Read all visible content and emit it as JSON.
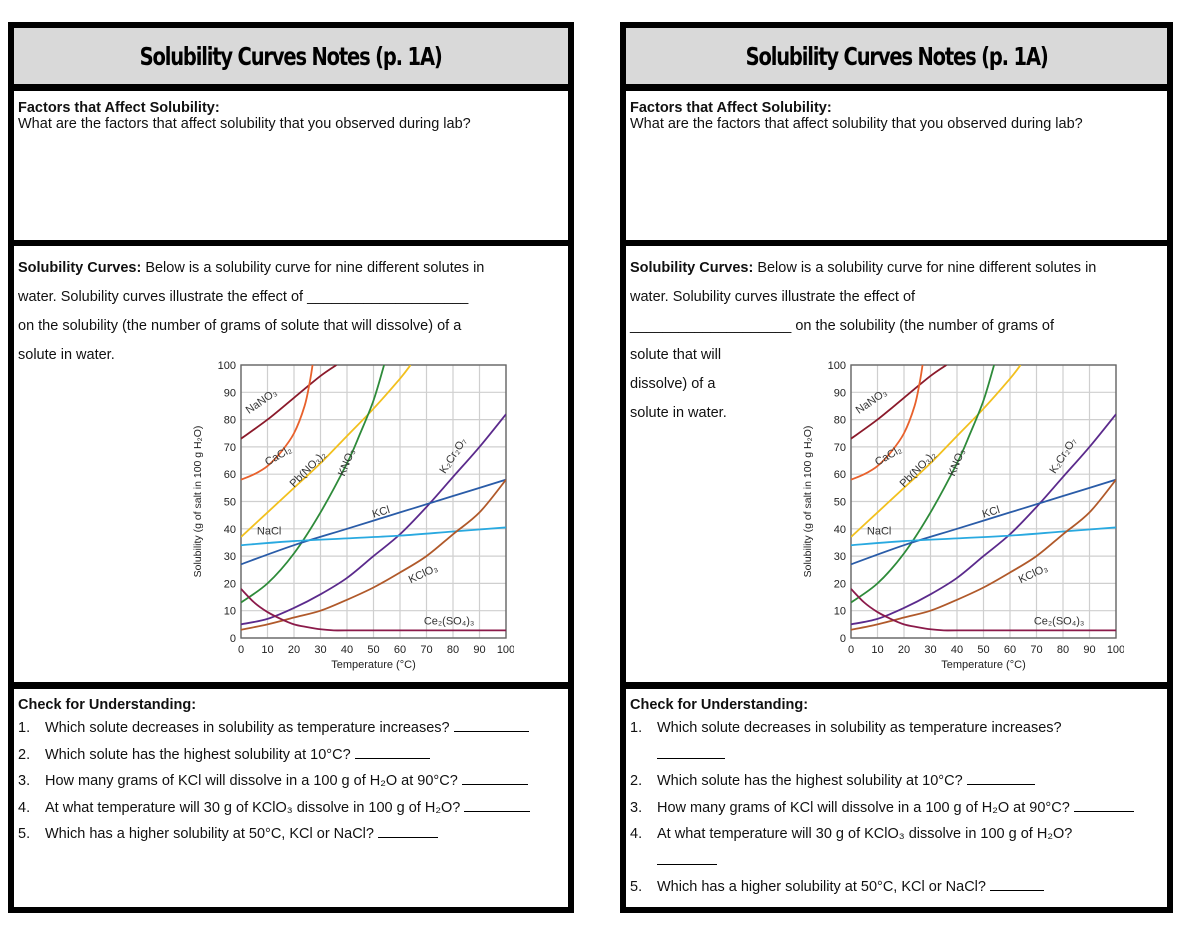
{
  "pages": [
    {
      "title": "Solubility Curves Notes (p. 1A)",
      "factors": {
        "heading": "Factors that Affect Solubility:",
        "prompt": "What are the factors that affect solubility that you observed during lab?"
      },
      "solubility": {
        "heading": "Solubility Curves:",
        "line1": "Below is a solubility curve for nine different solutes in",
        "line2": "water.  Solubility curves illustrate the effect of ____________________",
        "line3": "on the solubility (the number of grams of solute that will dissolve) of a",
        "line4": "solute in water."
      },
      "check": {
        "heading": "Check for Understanding:",
        "questions": [
          {
            "num": "1.",
            "text": "Which solute decreases in solubility as temperature increases?",
            "blank": "_________"
          },
          {
            "num": "2.",
            "text": "Which solute has the highest solubility at 10°C?",
            "blank": "_________"
          },
          {
            "num": "3.",
            "text": "How many grams of KCl will dissolve in a 100 g of H₂O at 90°C?",
            "blank": "________"
          },
          {
            "num": "4.",
            "text": "At what temperature will 30 g of KClO₃ dissolve in 100 g of H₂O?",
            "blank": "________"
          },
          {
            "num": "5.",
            "text": "Which has a higher solubility at 50°C, KCl or NaCl?",
            "blank": "_______"
          }
        ]
      }
    },
    {
      "title": "Solubility Curves Notes (p. 1A)",
      "factors": {
        "heading": "Factors that Affect Solubility:",
        "prompt": "What are the factors that affect solubility that you observed during lab?"
      },
      "solubility": {
        "heading": "Solubility Curves:",
        "line1": "Below is a solubility curve for nine different solutes in",
        "line2": "water.  Solubility curves illustrate the effect of",
        "line3": "____________________ on the solubility (the number of grams of",
        "line4": "solute that will",
        "line5": "dissolve) of a",
        "line6": "solute in water."
      },
      "check": {
        "heading": "Check for Understanding:",
        "questions": [
          {
            "num": "1.",
            "text": "Which solute decreases in solubility as temperature increases?",
            "blank": "_________"
          },
          {
            "num": "2.",
            "text": "Which solute has the highest solubility at 10°C?",
            "blank": "_________"
          },
          {
            "num": "3.",
            "text": "How many grams of KCl will dissolve in a 100 g of H₂O at 90°C?",
            "blank": "________"
          },
          {
            "num": "4.",
            "text": "At what temperature will 30 g of KClO₃ dissolve in 100 g of H₂O?",
            "blank": "________"
          },
          {
            "num": "5.",
            "text": "Which has a higher solubility at 50°C, KCl or NaCl?",
            "blank": "_______"
          }
        ]
      }
    }
  ],
  "chart_data": {
    "type": "line",
    "title": "",
    "xlabel": "Temperature (°C)",
    "ylabel": "Solubility (g of salt in 100 g H₂O)",
    "xlim": [
      0,
      100
    ],
    "ylim": [
      0,
      100
    ],
    "x_ticks": [
      0,
      10,
      20,
      30,
      40,
      50,
      60,
      70,
      80,
      90,
      100
    ],
    "y_ticks": [
      0,
      10,
      20,
      30,
      40,
      50,
      60,
      70,
      80,
      90,
      100
    ],
    "grid": true,
    "legend": "inline labels on curves",
    "series": [
      {
        "name": "NaNO₃",
        "color": "#8b1a2b",
        "x": [
          0,
          10,
          20,
          30,
          36
        ],
        "y": [
          73,
          80,
          88,
          96,
          100
        ]
      },
      {
        "name": "CaCl₂",
        "color": "#e8612c",
        "x": [
          0,
          5,
          10,
          15,
          20,
          24,
          26,
          27
        ],
        "y": [
          58,
          60,
          63,
          68,
          75,
          85,
          94,
          100
        ]
      },
      {
        "name": "Pb(NO₃)₂",
        "color": "#f2c01e",
        "x": [
          0,
          10,
          20,
          30,
          40,
          50,
          60,
          64
        ],
        "y": [
          37,
          46,
          55,
          64,
          74,
          84,
          95,
          100
        ]
      },
      {
        "name": "KNO₃",
        "color": "#2e8b3a",
        "x": [
          0,
          10,
          20,
          30,
          40,
          45,
          50,
          54
        ],
        "y": [
          13,
          20,
          31,
          46,
          64,
          75,
          87,
          100
        ]
      },
      {
        "name": "K₂Cr₂O₇",
        "color": "#5b2a8c",
        "x": [
          0,
          10,
          20,
          30,
          40,
          50,
          60,
          70,
          80,
          90,
          100
        ],
        "y": [
          5,
          7,
          11,
          16,
          22,
          30,
          38,
          48,
          59,
          70,
          82
        ]
      },
      {
        "name": "KCl",
        "color": "#2a5ca8",
        "x": [
          0,
          20,
          40,
          60,
          80,
          100
        ],
        "y": [
          27,
          34,
          40,
          46,
          52,
          58
        ]
      },
      {
        "name": "NaCl",
        "color": "#29a9e0",
        "x": [
          0,
          20,
          40,
          60,
          80,
          100
        ],
        "y": [
          34,
          35.5,
          36.5,
          37.5,
          39,
          40.5
        ]
      },
      {
        "name": "KClO₃",
        "color": "#b0592a",
        "x": [
          0,
          10,
          20,
          30,
          40,
          50,
          60,
          70,
          80,
          90,
          100
        ],
        "y": [
          3,
          5,
          7.5,
          10,
          14,
          18.5,
          24,
          30,
          38,
          46,
          58
        ]
      },
      {
        "name": "Ce₂(SO₄)₃",
        "color": "#8b1a4a",
        "x": [
          0,
          5,
          10,
          15,
          20,
          25,
          30,
          35,
          40,
          60,
          80,
          100
        ],
        "y": [
          18,
          13,
          9.5,
          7,
          5,
          4,
          3.2,
          2.8,
          2.8,
          2.8,
          2.8,
          2.8
        ]
      }
    ],
    "labels": [
      {
        "text": "NaNO₃",
        "x": 3,
        "y": 82,
        "rot": -35
      },
      {
        "text": "CaCl₂",
        "x": 10,
        "y": 63,
        "rot": -30
      },
      {
        "text": "Pb(NO₃)₂",
        "x": 20,
        "y": 55,
        "rot": -45
      },
      {
        "text": "KNO₃",
        "x": 39,
        "y": 59,
        "rot": -68
      },
      {
        "text": "K₂Cr₂O₇",
        "x": 77,
        "y": 60,
        "rot": -57
      },
      {
        "text": "KCl",
        "x": 50,
        "y": 44,
        "rot": -17
      },
      {
        "text": "NaCl",
        "x": 6,
        "y": 38,
        "rot": 0
      },
      {
        "text": "KClO₃",
        "x": 64,
        "y": 20,
        "rot": -25
      },
      {
        "text": "Ce₂(SO₄)₃",
        "x": 69,
        "y": 5,
        "rot": 0
      }
    ]
  }
}
